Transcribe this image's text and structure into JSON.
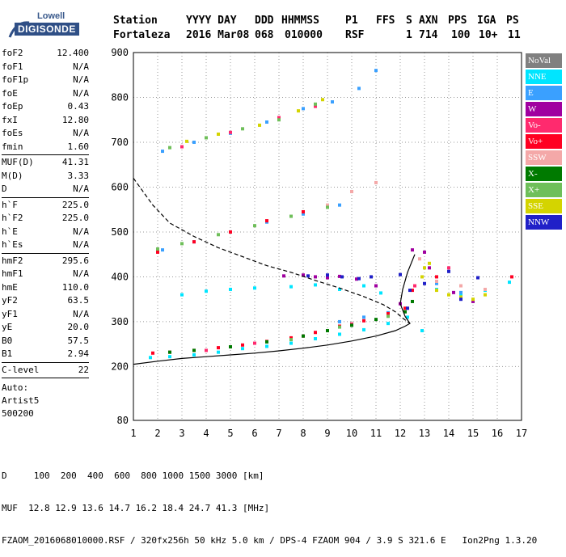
{
  "logo": {
    "top": "Lowell",
    "main": "DIGISONDE"
  },
  "header": {
    "labels": [
      "Station",
      "YYYY DAY",
      "DDD",
      "HHMMSS",
      "P1",
      "FFS",
      "S",
      "AXN",
      "PPS",
      "IGA",
      "PS"
    ],
    "values": [
      "Fortaleza",
      "2016 Mar08",
      "068",
      "010000",
      "RSF",
      "",
      "1",
      "714",
      "100",
      "10+",
      "11"
    ]
  },
  "params": {
    "group1": [
      {
        "name": "foF2",
        "value": "12.400"
      },
      {
        "name": "foF1",
        "value": "N/A"
      },
      {
        "name": "foF1p",
        "value": "N/A"
      },
      {
        "name": "foE",
        "value": "N/A"
      },
      {
        "name": "foEp",
        "value": "0.43"
      },
      {
        "name": "fxI",
        "value": "12.80"
      },
      {
        "name": "foEs",
        "value": "N/A"
      },
      {
        "name": "fmin",
        "value": "1.60"
      }
    ],
    "group2": [
      {
        "name": "MUF(D)",
        "value": "41.31"
      },
      {
        "name": "M(D)",
        "value": "3.33"
      },
      {
        "name": "D",
        "value": "N/A"
      }
    ],
    "group3": [
      {
        "name": "h`F",
        "value": "225.0"
      },
      {
        "name": "h`F2",
        "value": "225.0"
      },
      {
        "name": "h`E",
        "value": "N/A"
      },
      {
        "name": "h`Es",
        "value": "N/A"
      }
    ],
    "group4": [
      {
        "name": "hmF2",
        "value": "295.6"
      },
      {
        "name": "hmF1",
        "value": "N/A"
      },
      {
        "name": "hmE",
        "value": "110.0"
      },
      {
        "name": "yF2",
        "value": "63.5"
      },
      {
        "name": "yF1",
        "value": "N/A"
      },
      {
        "name": "yE",
        "value": "20.0"
      },
      {
        "name": "B0",
        "value": "57.5"
      },
      {
        "name": "B1",
        "value": "2.94"
      }
    ],
    "group5": [
      {
        "name": "C-level",
        "value": "22"
      }
    ],
    "auto": [
      "Auto:",
      "Artist5",
      "500200"
    ]
  },
  "legend": [
    {
      "label": "NoVal",
      "color": "#808080"
    },
    {
      "label": "NNE",
      "color": "#00e5ff"
    },
    {
      "label": "E",
      "color": "#3aa0ff"
    },
    {
      "label": "W",
      "color": "#a000a0"
    },
    {
      "label": "Vo-",
      "color": "#ff2a6e"
    },
    {
      "label": "Vo+",
      "color": "#ff0022"
    },
    {
      "label": "SSW",
      "color": "#f4a8a8"
    },
    {
      "label": "X-",
      "color": "#007a00"
    },
    {
      "label": "X+",
      "color": "#6fbf5a"
    },
    {
      "label": "SSE",
      "color": "#d4d400"
    },
    {
      "label": "NNW",
      "color": "#2020c8"
    }
  ],
  "footer": {
    "line1": "D     100  200  400  600  800 1000 1500 3000 [km]",
    "line2": "MUF  12.8 12.9 13.6 14.7 16.2 18.4 24.7 41.3 [MHz]",
    "line3": "FZAOM_2016068010000.RSF / 320fx256h 50 kHz 5.0 km / DPS-4 FZAOM 904 / 3.9 S 321.6 E   Ion2Png 1.3.20"
  },
  "chart_data": {
    "type": "scatter",
    "xlim": [
      1,
      17
    ],
    "ylim": [
      80,
      900
    ],
    "xticks": [
      1,
      2,
      3,
      4,
      5,
      6,
      7,
      8,
      9,
      10,
      11,
      12,
      13,
      14,
      15,
      16,
      17
    ],
    "yticks": [
      80,
      200,
      300,
      400,
      500,
      600,
      700,
      800,
      900
    ],
    "series": [
      {
        "name": "NNE",
        "points": [
          [
            1.7,
            220
          ],
          [
            2.5,
            222
          ],
          [
            3.5,
            226
          ],
          [
            4.5,
            232
          ],
          [
            5.5,
            240
          ],
          [
            6.5,
            245
          ],
          [
            7.5,
            252
          ],
          [
            8.5,
            262
          ],
          [
            9.5,
            272
          ],
          [
            10.5,
            282
          ],
          [
            11.5,
            296
          ],
          [
            12.3,
            310
          ],
          [
            12.9,
            280
          ],
          [
            13.5,
            372
          ],
          [
            14.5,
            360
          ],
          [
            15.5,
            370
          ],
          [
            16.5,
            388
          ],
          [
            3.0,
            360
          ],
          [
            4.0,
            368
          ],
          [
            5.0,
            372
          ],
          [
            6.0,
            375
          ],
          [
            7.5,
            378
          ],
          [
            8.5,
            382
          ],
          [
            9.5,
            372
          ],
          [
            10.5,
            380
          ],
          [
            11.2,
            364
          ]
        ]
      },
      {
        "name": "E",
        "points": [
          [
            2.2,
            460
          ],
          [
            3.5,
            478
          ],
          [
            5.0,
            500
          ],
          [
            6.5,
            522
          ],
          [
            8.0,
            540
          ],
          [
            9.5,
            560
          ],
          [
            2.2,
            680
          ],
          [
            3.5,
            700
          ],
          [
            5.0,
            720
          ],
          [
            6.5,
            745
          ],
          [
            8.0,
            775
          ],
          [
            9.2,
            790
          ],
          [
            10.3,
            820
          ],
          [
            11.0,
            860
          ],
          [
            9.5,
            300
          ],
          [
            10.5,
            310
          ],
          [
            11.5,
            320
          ],
          [
            13.5,
            385
          ],
          [
            14.5,
            365
          ]
        ]
      },
      {
        "name": "W",
        "points": [
          [
            7.2,
            402
          ],
          [
            8.0,
            404
          ],
          [
            8.5,
            400
          ],
          [
            9.0,
            398
          ],
          [
            9.5,
            401
          ],
          [
            10.2,
            395
          ],
          [
            11.0,
            380
          ],
          [
            12.5,
            460
          ],
          [
            13.0,
            455
          ],
          [
            12.0,
            340
          ],
          [
            13.2,
            420
          ],
          [
            14.2,
            365
          ],
          [
            15.0,
            345
          ]
        ]
      },
      {
        "name": "Vo+",
        "points": [
          [
            1.8,
            230
          ],
          [
            2.5,
            232
          ],
          [
            3.5,
            236
          ],
          [
            4.5,
            242
          ],
          [
            5.5,
            248
          ],
          [
            6.5,
            256
          ],
          [
            7.5,
            264
          ],
          [
            8.5,
            276
          ],
          [
            9.5,
            290
          ],
          [
            10.5,
            302
          ],
          [
            11.5,
            318
          ],
          [
            12.2,
            330
          ],
          [
            2.0,
            455
          ],
          [
            3.5,
            478
          ],
          [
            5.0,
            500
          ],
          [
            6.5,
            525
          ],
          [
            8.0,
            545
          ],
          [
            12.5,
            370
          ],
          [
            13.5,
            400
          ],
          [
            16.6,
            400
          ]
        ]
      },
      {
        "name": "Vo-",
        "points": [
          [
            4.0,
            236
          ],
          [
            6.0,
            252
          ],
          [
            8.0,
            268
          ],
          [
            10.0,
            295
          ],
          [
            3.0,
            690
          ],
          [
            5.0,
            722
          ],
          [
            7.0,
            755
          ],
          [
            8.5,
            780
          ],
          [
            12.6,
            380
          ],
          [
            14.0,
            420
          ]
        ]
      },
      {
        "name": "SSW",
        "points": [
          [
            9.0,
            560
          ],
          [
            10.0,
            590
          ],
          [
            11.0,
            610
          ],
          [
            12.8,
            440
          ],
          [
            13.5,
            390
          ],
          [
            14.5,
            380
          ],
          [
            15.5,
            372
          ]
        ]
      },
      {
        "name": "X-",
        "points": [
          [
            2.5,
            232
          ],
          [
            3.5,
            236
          ],
          [
            5.0,
            244
          ],
          [
            6.5,
            255
          ],
          [
            8.0,
            268
          ],
          [
            9.0,
            280
          ],
          [
            10.0,
            292
          ],
          [
            11.0,
            305
          ],
          [
            12.2,
            322
          ],
          [
            12.5,
            345
          ]
        ]
      },
      {
        "name": "X+",
        "points": [
          [
            2.0,
            462
          ],
          [
            3.0,
            474
          ],
          [
            4.5,
            494
          ],
          [
            6.0,
            514
          ],
          [
            7.5,
            535
          ],
          [
            9.0,
            555
          ],
          [
            2.5,
            688
          ],
          [
            4.0,
            710
          ],
          [
            5.5,
            730
          ],
          [
            7.0,
            750
          ],
          [
            8.5,
            785
          ],
          [
            7.5,
            260
          ],
          [
            9.5,
            288
          ],
          [
            11.5,
            312
          ]
        ]
      },
      {
        "name": "SSE",
        "points": [
          [
            3.2,
            702
          ],
          [
            4.5,
            718
          ],
          [
            6.2,
            738
          ],
          [
            7.8,
            770
          ],
          [
            8.8,
            795
          ],
          [
            13.0,
            420
          ],
          [
            13.5,
            370
          ],
          [
            14.0,
            360
          ],
          [
            14.5,
            355
          ],
          [
            15.0,
            350
          ],
          [
            15.5,
            360
          ],
          [
            12.9,
            400
          ],
          [
            13.2,
            430
          ]
        ]
      },
      {
        "name": "NNW",
        "points": [
          [
            8.2,
            402
          ],
          [
            9.0,
            404
          ],
          [
            9.6,
            400
          ],
          [
            10.3,
            396
          ],
          [
            10.8,
            400
          ],
          [
            12.0,
            405
          ],
          [
            12.4,
            370
          ],
          [
            13.0,
            385
          ],
          [
            14.0,
            412
          ],
          [
            14.5,
            350
          ],
          [
            15.2,
            398
          ],
          [
            12.3,
            330
          ]
        ]
      }
    ],
    "profile_curves": [
      {
        "style": "solid",
        "points": [
          [
            1.0,
            205
          ],
          [
            2.0,
            212
          ],
          [
            3.0,
            218
          ],
          [
            4.0,
            222
          ],
          [
            5.0,
            226
          ],
          [
            6.0,
            230
          ],
          [
            7.0,
            235
          ],
          [
            8.0,
            241
          ],
          [
            9.0,
            248
          ],
          [
            10.0,
            257
          ],
          [
            11.0,
            268
          ],
          [
            11.8,
            280
          ],
          [
            12.2,
            290
          ],
          [
            12.4,
            296
          ],
          [
            12.2,
            312
          ],
          [
            12.0,
            340
          ],
          [
            12.1,
            372
          ],
          [
            12.3,
            410
          ],
          [
            12.6,
            450
          ]
        ]
      },
      {
        "style": "dashed",
        "points": [
          [
            1.0,
            620
          ],
          [
            1.8,
            560
          ],
          [
            2.5,
            520
          ],
          [
            3.5,
            490
          ],
          [
            4.5,
            465
          ],
          [
            5.5,
            445
          ],
          [
            6.5,
            425
          ],
          [
            7.5,
            410
          ],
          [
            8.5,
            392
          ],
          [
            9.5,
            375
          ],
          [
            10.5,
            356
          ],
          [
            11.3,
            338
          ],
          [
            11.8,
            322
          ],
          [
            12.1,
            308
          ],
          [
            12.4,
            296
          ]
        ]
      }
    ]
  }
}
